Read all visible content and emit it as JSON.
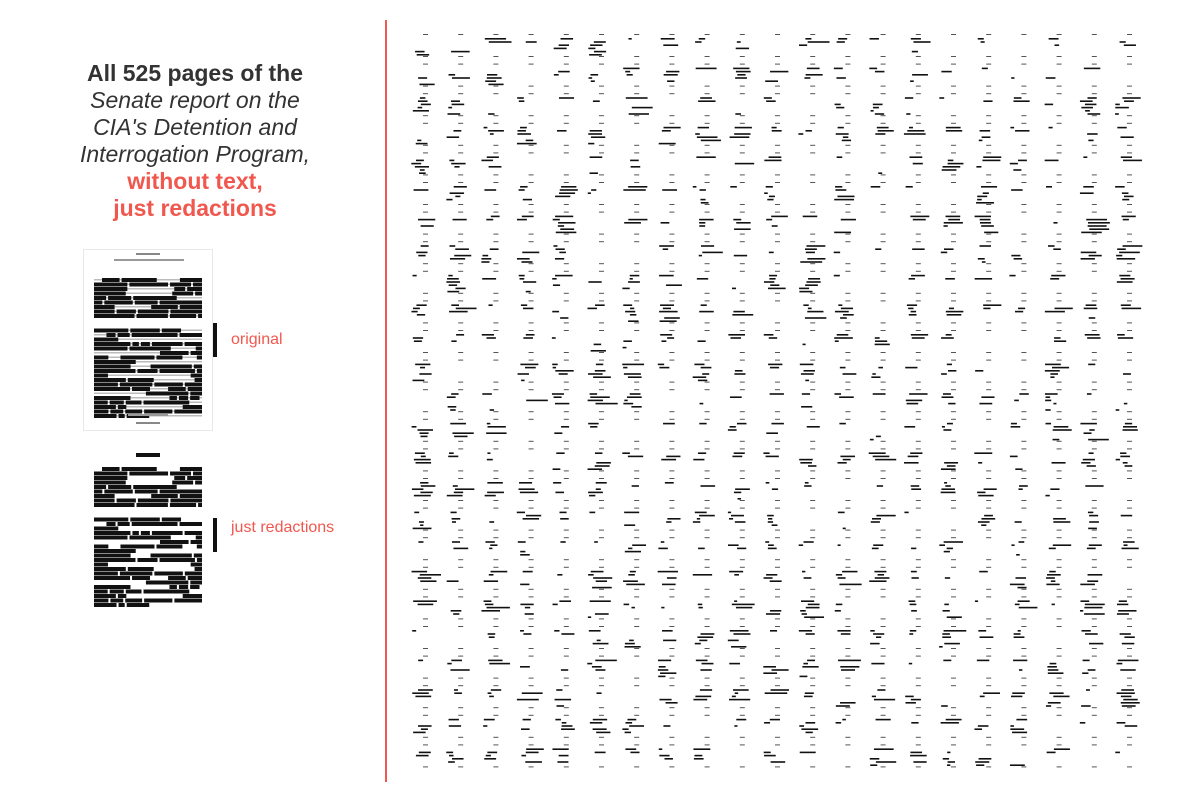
{
  "title": {
    "line1": "All 525 pages of the",
    "line2": "Senate report on the",
    "line3": "CIA's Detention and",
    "line4": "Interrogation Program,",
    "line5": "without text,",
    "line6": "just redactions"
  },
  "labels": {
    "original": "original",
    "redactions": "just redactions"
  },
  "colors": {
    "accent": "#f0584f",
    "ink": "#111111",
    "text": "#333333"
  },
  "grid": {
    "page_count": 525
  }
}
